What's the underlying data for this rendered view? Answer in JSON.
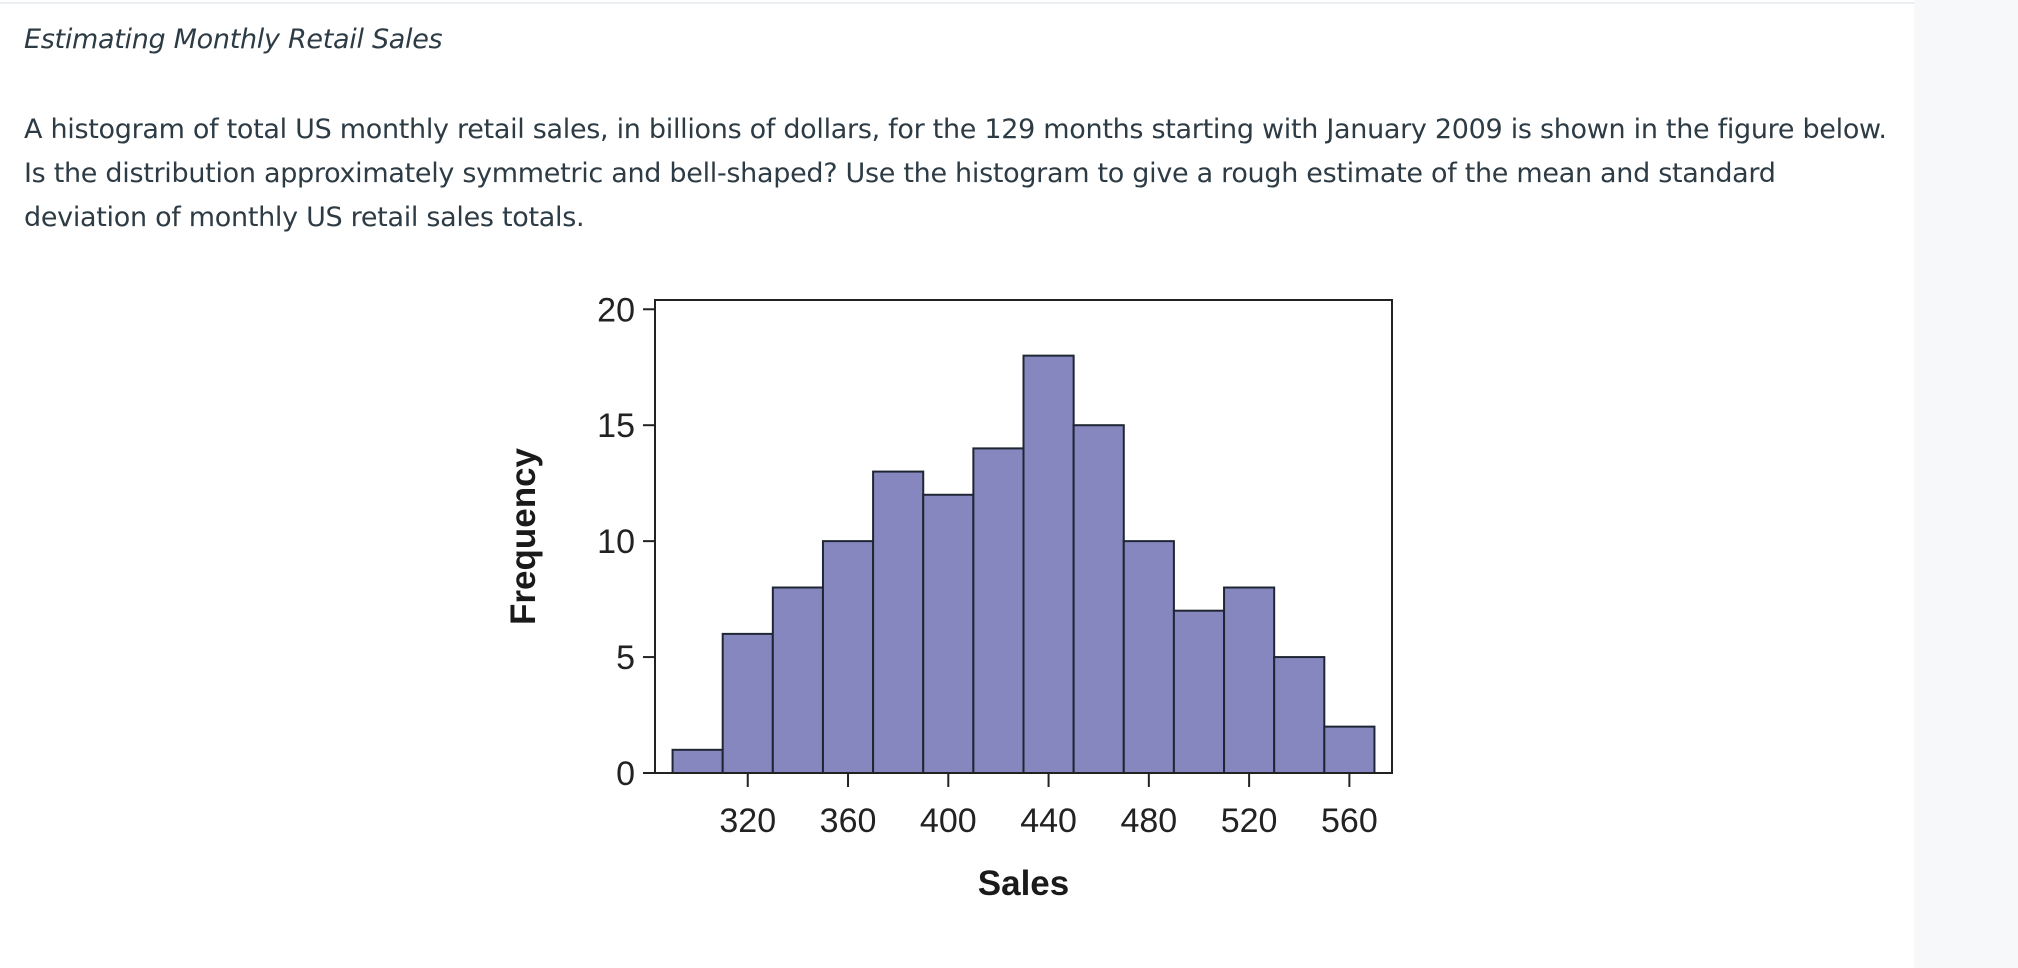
{
  "problem": {
    "title": "Estimating Monthly Retail Sales",
    "text": "A histogram of total US monthly retail sales, in billions of dollars, for the 129 months starting with January 2009 is shown in the figure below. Is the distribution approximately symmetric and bell-shaped? Use the histogram to give a rough estimate of the mean and standard deviation of monthly US retail sales totals."
  },
  "chart_data": {
    "type": "bar",
    "title": "",
    "xlabel": "Sales",
    "ylabel": "Frequency",
    "bins": [
      {
        "start": 290,
        "end": 310,
        "count": 1
      },
      {
        "start": 310,
        "end": 330,
        "count": 6
      },
      {
        "start": 330,
        "end": 350,
        "count": 8
      },
      {
        "start": 350,
        "end": 370,
        "count": 10
      },
      {
        "start": 370,
        "end": 390,
        "count": 13
      },
      {
        "start": 390,
        "end": 410,
        "count": 12
      },
      {
        "start": 410,
        "end": 430,
        "count": 14
      },
      {
        "start": 430,
        "end": 450,
        "count": 18
      },
      {
        "start": 450,
        "end": 470,
        "count": 15
      },
      {
        "start": 470,
        "end": 490,
        "count": 10
      },
      {
        "start": 490,
        "end": 510,
        "count": 7
      },
      {
        "start": 510,
        "end": 530,
        "count": 8
      },
      {
        "start": 530,
        "end": 550,
        "count": 5
      },
      {
        "start": 550,
        "end": 570,
        "count": 2
      }
    ],
    "xticks": [
      320,
      360,
      400,
      440,
      480,
      520,
      560
    ],
    "yticks": [
      0,
      5,
      10,
      15,
      20
    ],
    "xlim": [
      283,
      577
    ],
    "ylim": [
      0,
      20.4
    ],
    "grid": false,
    "bar_color": "#8687be",
    "bar_edge_color": "#1f2633"
  }
}
